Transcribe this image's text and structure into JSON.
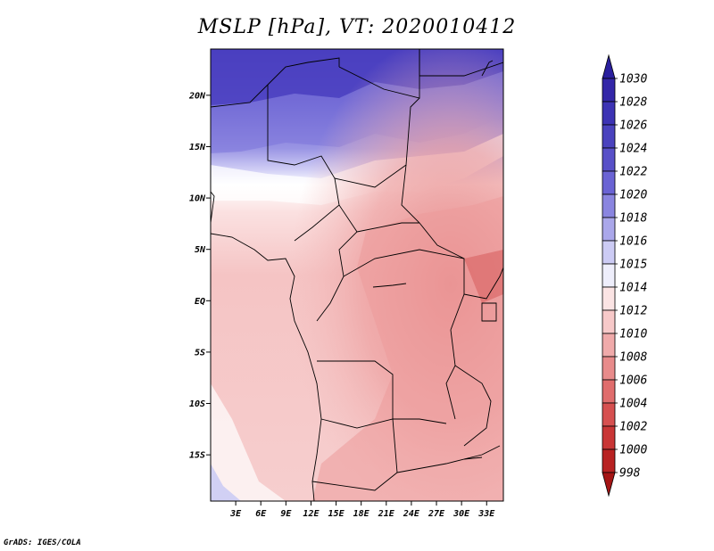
{
  "title": "MSLP [hPa], VT: 2020010412",
  "footer": "GrADS: IGES/COLA",
  "map": {
    "variable": "MSLP",
    "units": "hPa",
    "valid_time": "2020010412",
    "lon_range": [
      0,
      35
    ],
    "lat_range": [
      -19.5,
      24.5
    ],
    "lat_labels": [
      {
        "value": 20,
        "text": "20N"
      },
      {
        "value": 15,
        "text": "15N"
      },
      {
        "value": 10,
        "text": "10N"
      },
      {
        "value": 5,
        "text": "5N"
      },
      {
        "value": 0,
        "text": "EQ"
      },
      {
        "value": -5,
        "text": "5S"
      },
      {
        "value": -10,
        "text": "10S"
      },
      {
        "value": -15,
        "text": "15S"
      }
    ],
    "lon_labels": [
      {
        "value": 3,
        "text": "3E"
      },
      {
        "value": 6,
        "text": "6E"
      },
      {
        "value": 9,
        "text": "9E"
      },
      {
        "value": 12,
        "text": "12E"
      },
      {
        "value": 15,
        "text": "15E"
      },
      {
        "value": 18,
        "text": "18E"
      },
      {
        "value": 21,
        "text": "21E"
      },
      {
        "value": 24,
        "text": "24E"
      },
      {
        "value": 27,
        "text": "27E"
      },
      {
        "value": 30,
        "text": "30E"
      },
      {
        "value": 33,
        "text": "33E"
      }
    ]
  },
  "colorbar": {
    "labels": [
      "1030",
      "1028",
      "1026",
      "1024",
      "1022",
      "1020",
      "1018",
      "1016",
      "1015",
      "1014",
      "1012",
      "1010",
      "1008",
      "1006",
      "1004",
      "1002",
      "1000",
      "998"
    ],
    "colors": [
      "#2a1f9e",
      "#3326a8",
      "#3d33b4",
      "#4a42be",
      "#5850c8",
      "#6a63d4",
      "#8a85e0",
      "#aaa7ea",
      "#cccbf4",
      "#eeeefb",
      "#fbe4e4",
      "#f7c9c9",
      "#f0aaaa",
      "#e88b8b",
      "#e06d6d",
      "#d65050",
      "#c93636",
      "#b82222",
      "#a51515"
    ]
  }
}
